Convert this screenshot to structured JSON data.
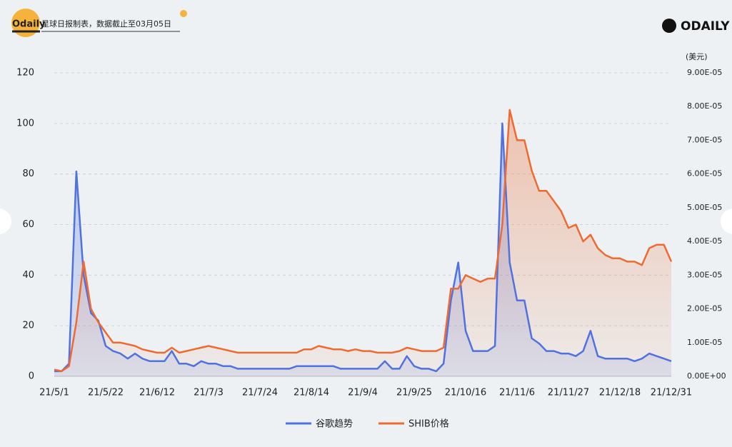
{
  "header": {
    "logo": "Odaily",
    "note": "星球日报制表，数据截止至03月05日",
    "brand": "ODAILY"
  },
  "chart_data": {
    "type": "line",
    "area": true,
    "grid": true,
    "legend": "bottom",
    "y2_label": "(美元)",
    "categories": [
      "21/5/1",
      null,
      null,
      null,
      null,
      null,
      null,
      "21/5/22",
      null,
      null,
      null,
      null,
      null,
      null,
      "21/6/12",
      null,
      null,
      null,
      null,
      null,
      null,
      "21/7/3",
      null,
      null,
      null,
      null,
      null,
      null,
      "21/7/24",
      null,
      null,
      null,
      null,
      null,
      null,
      "21/8/14",
      null,
      null,
      null,
      null,
      null,
      null,
      "21/9/4",
      null,
      null,
      null,
      null,
      null,
      null,
      "21/9/25",
      null,
      null,
      null,
      null,
      null,
      null,
      "21/10/16",
      null,
      null,
      null,
      null,
      null,
      null,
      "21/11/6",
      null,
      null,
      null,
      null,
      null,
      null,
      "21/11/27",
      null,
      null,
      null,
      null,
      null,
      null,
      "21/12/18",
      null,
      null,
      null,
      null,
      null,
      null,
      "21/12/31"
    ],
    "ylim": [
      0,
      120
    ],
    "yticks": [
      0,
      20,
      40,
      60,
      80,
      100,
      120
    ],
    "y2lim": [
      0,
      9e-05
    ],
    "y2ticks": [
      {
        "value": 0,
        "label": "0.00E+00"
      },
      {
        "value": 1e-05,
        "label": "1.00E-05"
      },
      {
        "value": 2e-05,
        "label": "2.00E-05"
      },
      {
        "value": 3e-05,
        "label": "3.00E-05"
      },
      {
        "value": 4e-05,
        "label": "4.00E-05"
      },
      {
        "value": 5e-05,
        "label": "5.00E-05"
      },
      {
        "value": 6e-05,
        "label": "6.00E-05"
      },
      {
        "value": 7e-05,
        "label": "7.00E-05"
      },
      {
        "value": 8e-05,
        "label": "8.00E-05"
      },
      {
        "value": 9e-05,
        "label": "9.00E-05"
      }
    ],
    "series": [
      {
        "name": "谷歌趋势",
        "color": "#4f72e0",
        "axis": "y",
        "values": [
          2,
          2,
          5,
          81,
          40,
          25,
          22,
          12,
          10,
          9,
          7,
          9,
          7,
          6,
          6,
          6,
          10,
          5,
          5,
          4,
          6,
          5,
          5,
          4,
          4,
          3,
          3,
          3,
          3,
          3,
          3,
          3,
          3,
          4,
          4,
          4,
          4,
          4,
          4,
          3,
          3,
          3,
          3,
          3,
          3,
          6,
          3,
          3,
          8,
          4,
          3,
          3,
          2,
          5,
          30,
          45,
          18,
          10,
          10,
          10,
          12,
          100,
          45,
          30,
          30,
          15,
          13,
          10,
          10,
          9,
          9,
          8,
          10,
          18,
          8,
          7,
          7,
          7,
          7,
          6,
          7,
          9,
          8,
          7,
          6
        ]
      },
      {
        "name": "SHIB价格",
        "color": "#ee6a30",
        "axis": "y2",
        "values": [
          2e-06,
          1.5e-06,
          3e-06,
          1.6e-05,
          3.4e-05,
          2e-05,
          1.6e-05,
          1.3e-05,
          1e-05,
          1e-05,
          9.5e-06,
          9e-06,
          8e-06,
          7.5e-06,
          7e-06,
          7e-06,
          8.5e-06,
          7e-06,
          7.5e-06,
          8e-06,
          8.5e-06,
          9e-06,
          8.5e-06,
          8e-06,
          7.5e-06,
          7e-06,
          7e-06,
          7e-06,
          7e-06,
          7e-06,
          7e-06,
          7e-06,
          7e-06,
          7e-06,
          8e-06,
          8e-06,
          9e-06,
          8.5e-06,
          8e-06,
          8e-06,
          7.5e-06,
          8e-06,
          7.5e-06,
          7.5e-06,
          7e-06,
          7e-06,
          7e-06,
          7.5e-06,
          8.5e-06,
          8e-06,
          7.5e-06,
          7.5e-06,
          7.5e-06,
          8.5e-06,
          2.6e-05,
          2.6e-05,
          3e-05,
          2.9e-05,
          2.8e-05,
          2.9e-05,
          2.9e-05,
          4.5e-05,
          7.9e-05,
          7e-05,
          7e-05,
          6.1e-05,
          5.5e-05,
          5.5e-05,
          5.2e-05,
          4.9e-05,
          4.4e-05,
          4.5e-05,
          4e-05,
          4.2e-05,
          3.8e-05,
          3.6e-05,
          3.5e-05,
          3.5e-05,
          3.4e-05,
          3.4e-05,
          3.3e-05,
          3.8e-05,
          3.9e-05,
          3.9e-05,
          3.4e-05
        ]
      }
    ]
  }
}
